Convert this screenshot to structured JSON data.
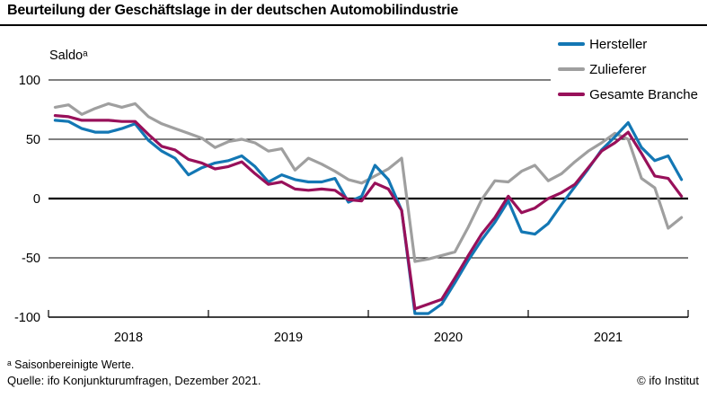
{
  "title": "Beurteilung der Geschäftslage in der deutschen Automobilindustrie",
  "y_axis_label": "Saldoᵃ",
  "footnote": "ᵃ Saisonbereinigte Werte.",
  "source": "Quelle: ifo Konjunkturumfragen, Dezember 2021.",
  "copyright": "© ifo Institut",
  "chart_data": {
    "type": "line",
    "x_unit": "month",
    "x_start": "2018-01",
    "x_end": "2021-12",
    "x_tick_labels": [
      "2018",
      "2019",
      "2020",
      "2021"
    ],
    "y_ticks": [
      100,
      50,
      0,
      -50,
      -100
    ],
    "ylim": [
      -100,
      100
    ],
    "grid": "horizontal",
    "legend_position": "top-right",
    "axis_color": "#000000",
    "series": [
      {
        "name": "Hersteller",
        "color": "#1377b4",
        "values": [
          66,
          65,
          59,
          56,
          56,
          59,
          63,
          49,
          40,
          34,
          20,
          26,
          30,
          32,
          36,
          27,
          14,
          20,
          16,
          14,
          14,
          17,
          -3,
          2,
          28,
          16,
          -10,
          -97,
          -97,
          -89,
          -71,
          -52,
          -35,
          -20,
          -2,
          -28,
          -30,
          -21,
          -5,
          10,
          25,
          41,
          52,
          64,
          43,
          32,
          36,
          16
        ]
      },
      {
        "name": "Zulieferer",
        "color": "#9f9f9f",
        "values": [
          77,
          79,
          71,
          76,
          80,
          77,
          80,
          69,
          63,
          59,
          55,
          51,
          43,
          48,
          50,
          47,
          40,
          42,
          24,
          34,
          29,
          23,
          16,
          13,
          19,
          25,
          34,
          -53,
          -51,
          -48,
          -45,
          -24,
          -1,
          15,
          14,
          23,
          28,
          15,
          21,
          31,
          40,
          47,
          55,
          50,
          17,
          9,
          -25,
          -16
        ]
      },
      {
        "name": "Gesamte Branche",
        "color": "#98105a",
        "values": [
          70,
          69,
          66,
          66,
          66,
          65,
          65,
          54,
          44,
          41,
          33,
          30,
          25,
          27,
          31,
          21,
          12,
          14,
          8,
          7,
          8,
          7,
          -1,
          -2,
          13,
          8,
          -10,
          -93,
          -89,
          -85,
          -67,
          -48,
          -30,
          -16,
          2,
          -12,
          -8,
          0,
          5,
          12,
          26,
          40,
          47,
          56,
          38,
          19,
          17,
          2
        ]
      }
    ]
  }
}
